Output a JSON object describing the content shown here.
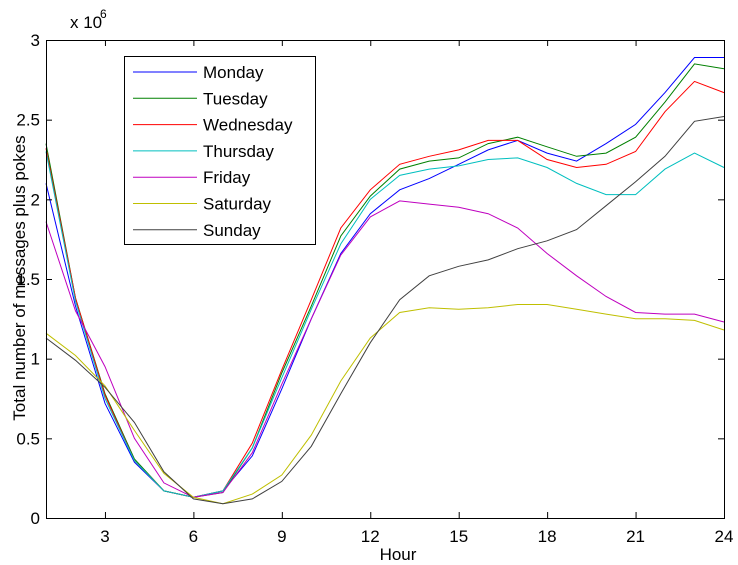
{
  "chart_data": {
    "type": "line",
    "xlabel": "Hour",
    "ylabel": "Total number of messages plus pokes",
    "y_multiplier_base": "x 10",
    "y_multiplier_exp": "6",
    "xlim": [
      1,
      24
    ],
    "ylim": [
      0,
      3
    ],
    "x_ticks": [
      3,
      6,
      9,
      12,
      15,
      18,
      21,
      24
    ],
    "x_tick_labels": [
      "3",
      "6",
      "9",
      "12",
      "15",
      "18",
      "21",
      "24"
    ],
    "y_ticks": [
      0,
      0.5,
      1,
      1.5,
      2,
      2.5,
      3
    ],
    "y_tick_labels": [
      "0",
      "0.5",
      "1",
      "1.5",
      "2",
      "2.5",
      "3"
    ],
    "grid": false,
    "legend_position": "top-left",
    "x": [
      1,
      2,
      3,
      4,
      5,
      6,
      7,
      8,
      9,
      10,
      11,
      12,
      13,
      14,
      15,
      16,
      17,
      18,
      19,
      20,
      21,
      22,
      23,
      24
    ],
    "series": [
      {
        "name": "Monday",
        "color": "#0000ff",
        "values": [
          2.1,
          1.33,
          0.72,
          0.35,
          0.17,
          0.13,
          0.17,
          0.39,
          0.81,
          1.25,
          1.66,
          1.91,
          2.06,
          2.13,
          2.22,
          2.31,
          2.37,
          2.29,
          2.24,
          2.35,
          2.47,
          2.67,
          2.89,
          2.89
        ]
      },
      {
        "name": "Tuesday",
        "color": "#008000",
        "values": [
          2.35,
          1.38,
          0.78,
          0.37,
          0.17,
          0.13,
          0.16,
          0.44,
          0.91,
          1.33,
          1.77,
          2.02,
          2.19,
          2.24,
          2.26,
          2.35,
          2.39,
          2.33,
          2.27,
          2.29,
          2.39,
          2.61,
          2.85,
          2.82
        ]
      },
      {
        "name": "Wednesday",
        "color": "#ff0000",
        "values": [
          2.32,
          1.38,
          0.77,
          0.36,
          0.17,
          0.13,
          0.17,
          0.47,
          0.93,
          1.37,
          1.82,
          2.06,
          2.22,
          2.27,
          2.31,
          2.37,
          2.37,
          2.25,
          2.2,
          2.22,
          2.3,
          2.55,
          2.74,
          2.67
        ]
      },
      {
        "name": "Thursday",
        "color": "#00bfbf",
        "values": [
          2.3,
          1.36,
          0.75,
          0.36,
          0.17,
          0.13,
          0.17,
          0.44,
          0.88,
          1.31,
          1.72,
          2.0,
          2.15,
          2.19,
          2.21,
          2.25,
          2.26,
          2.2,
          2.1,
          2.03,
          2.03,
          2.19,
          2.29,
          2.2
        ]
      },
      {
        "name": "Friday",
        "color": "#bf00bf",
        "values": [
          1.86,
          1.3,
          0.95,
          0.5,
          0.22,
          0.13,
          0.16,
          0.41,
          0.84,
          1.25,
          1.65,
          1.89,
          1.99,
          1.97,
          1.95,
          1.91,
          1.82,
          1.66,
          1.52,
          1.39,
          1.29,
          1.28,
          1.28,
          1.23
        ]
      },
      {
        "name": "Saturday",
        "color": "#bfbf00",
        "values": [
          1.16,
          1.02,
          0.83,
          0.55,
          0.28,
          0.13,
          0.09,
          0.15,
          0.27,
          0.52,
          0.86,
          1.13,
          1.29,
          1.32,
          1.31,
          1.32,
          1.34,
          1.34,
          1.31,
          1.28,
          1.25,
          1.25,
          1.24,
          1.18
        ]
      },
      {
        "name": "Sunday",
        "color": "#404040",
        "values": [
          1.13,
          0.99,
          0.82,
          0.6,
          0.29,
          0.12,
          0.09,
          0.12,
          0.23,
          0.45,
          0.78,
          1.1,
          1.37,
          1.52,
          1.58,
          1.62,
          1.69,
          1.74,
          1.81,
          1.96,
          2.11,
          2.27,
          2.49,
          2.52
        ]
      }
    ]
  }
}
